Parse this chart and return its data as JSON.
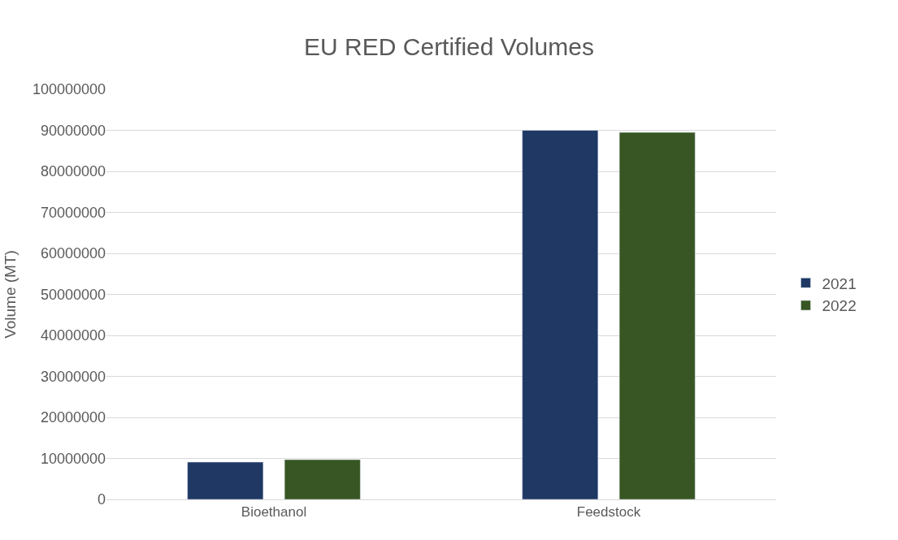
{
  "chart_data": {
    "type": "bar",
    "title": "EU RED Certified Volumes",
    "ylabel": "Volume (MT)",
    "categories": [
      "Bioethanol",
      "Feedstock"
    ],
    "series": [
      {
        "name": "2021",
        "color": "#1f3864",
        "values": [
          9100000,
          90000000
        ]
      },
      {
        "name": "2022",
        "color": "#375623",
        "values": [
          9700000,
          89500000
        ]
      }
    ],
    "ylim": [
      0,
      100000000
    ],
    "yticks": [
      0,
      10000000,
      20000000,
      30000000,
      40000000,
      50000000,
      60000000,
      70000000,
      80000000,
      90000000,
      100000000
    ],
    "grid": "y",
    "legend": "right"
  }
}
